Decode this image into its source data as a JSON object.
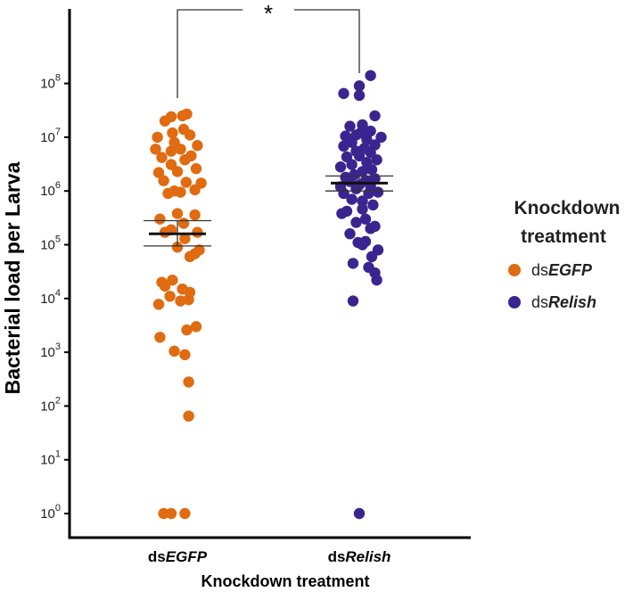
{
  "chart_data": {
    "type": "scatter",
    "title": "",
    "xlabel": "Knockdown treatment",
    "ylabel": "Bacterial load per Larva",
    "y_scale": "log",
    "ylim": [
      1,
      1000000000
    ],
    "y_ticks": [
      {
        "value": 1,
        "base": "10",
        "exp": "0"
      },
      {
        "value": 10,
        "base": "10",
        "exp": "1"
      },
      {
        "value": 100,
        "base": "10",
        "exp": "2"
      },
      {
        "value": 1000,
        "base": "10",
        "exp": "3"
      },
      {
        "value": 10000,
        "base": "10",
        "exp": "4"
      },
      {
        "value": 100000,
        "base": "10",
        "exp": "5"
      },
      {
        "value": 1000000,
        "base": "10",
        "exp": "6"
      },
      {
        "value": 10000000,
        "base": "10",
        "exp": "7"
      },
      {
        "value": 100000000,
        "base": "10",
        "exp": "8"
      }
    ],
    "categories": [
      {
        "prefix": "ds",
        "italic": "EGFP"
      },
      {
        "prefix": "ds",
        "italic": "Relish"
      }
    ],
    "legend": {
      "title_line1": "Knockdown",
      "title_line2": "treatment",
      "position": "right"
    },
    "significance": "*",
    "series": [
      {
        "color": "#e06b10",
        "mean": 160000,
        "error_low": 95000,
        "error_high": 280000,
        "points": [
          {
            "jitter": -0.22,
            "y": 1
          },
          {
            "jitter": -0.1,
            "y": 1
          },
          {
            "jitter": 0.12,
            "y": 1
          },
          {
            "jitter": 0.18,
            "y": 65
          },
          {
            "jitter": 0.18,
            "y": 280
          },
          {
            "jitter": 0.12,
            "y": 900
          },
          {
            "jitter": -0.05,
            "y": 1050
          },
          {
            "jitter": -0.28,
            "y": 1900
          },
          {
            "jitter": 0.15,
            "y": 2600
          },
          {
            "jitter": 0.3,
            "y": 3000
          },
          {
            "jitter": -0.3,
            "y": 7800
          },
          {
            "jitter": 0.05,
            "y": 9000
          },
          {
            "jitter": 0.18,
            "y": 9500
          },
          {
            "jitter": -0.12,
            "y": 11000
          },
          {
            "jitter": 0.2,
            "y": 13000
          },
          {
            "jitter": 0.08,
            "y": 15000
          },
          {
            "jitter": -0.2,
            "y": 17000
          },
          {
            "jitter": -0.25,
            "y": 20000
          },
          {
            "jitter": -0.08,
            "y": 22000
          },
          {
            "jitter": 0.2,
            "y": 60000
          },
          {
            "jitter": 0.28,
            "y": 68000
          },
          {
            "jitter": 0.35,
            "y": 80000
          },
          {
            "jitter": 0.0,
            "y": 90000
          },
          {
            "jitter": 0.12,
            "y": 130000
          },
          {
            "jitter": -0.2,
            "y": 170000
          },
          {
            "jitter": 0.32,
            "y": 170000
          },
          {
            "jitter": -0.1,
            "y": 190000
          },
          {
            "jitter": 0.1,
            "y": 250000
          },
          {
            "jitter": -0.28,
            "y": 300000
          },
          {
            "jitter": 0.28,
            "y": 360000
          },
          {
            "jitter": 0.0,
            "y": 380000
          },
          {
            "jitter": -0.15,
            "y": 900000
          },
          {
            "jitter": 0.05,
            "y": 950000
          },
          {
            "jitter": -0.05,
            "y": 1000000
          },
          {
            "jitter": 0.28,
            "y": 1050000
          },
          {
            "jitter": 0.38,
            "y": 1400000
          },
          {
            "jitter": 0.14,
            "y": 1450000
          },
          {
            "jitter": -0.22,
            "y": 1550000
          },
          {
            "jitter": -0.3,
            "y": 2200000
          },
          {
            "jitter": 0.0,
            "y": 2300000
          },
          {
            "jitter": 0.3,
            "y": 2600000
          },
          {
            "jitter": -0.1,
            "y": 3100000
          },
          {
            "jitter": 0.12,
            "y": 3800000
          },
          {
            "jitter": -0.25,
            "y": 4200000
          },
          {
            "jitter": 0.22,
            "y": 4500000
          },
          {
            "jitter": -0.1,
            "y": 5500000
          },
          {
            "jitter": 0.05,
            "y": 6000000
          },
          {
            "jitter": -0.35,
            "y": 6000000
          },
          {
            "jitter": 0.32,
            "y": 7000000
          },
          {
            "jitter": -0.05,
            "y": 8000000
          },
          {
            "jitter": -0.32,
            "y": 10000000
          },
          {
            "jitter": 0.2,
            "y": 11000000
          },
          {
            "jitter": 0.1,
            "y": 14000000
          },
          {
            "jitter": -0.08,
            "y": 12000000
          },
          {
            "jitter": -0.2,
            "y": 20000000
          },
          {
            "jitter": -0.1,
            "y": 24000000
          },
          {
            "jitter": 0.08,
            "y": 25000000
          },
          {
            "jitter": 0.15,
            "y": 27000000
          }
        ]
      },
      {
        "color": "#3a2590",
        "mean": 1400000,
        "error_low": 1000000,
        "error_high": 1900000,
        "points": [
          {
            "jitter": 0.0,
            "y": 1
          },
          {
            "jitter": -0.1,
            "y": 9000
          },
          {
            "jitter": 0.28,
            "y": 22000
          },
          {
            "jitter": 0.25,
            "y": 30000
          },
          {
            "jitter": 0.15,
            "y": 38000
          },
          {
            "jitter": -0.1,
            "y": 45000
          },
          {
            "jitter": 0.2,
            "y": 60000
          },
          {
            "jitter": 0.3,
            "y": 80000
          },
          {
            "jitter": 0.05,
            "y": 100000
          },
          {
            "jitter": -0.02,
            "y": 110000
          },
          {
            "jitter": 0.1,
            "y": 115000
          },
          {
            "jitter": -0.15,
            "y": 160000
          },
          {
            "jitter": 0.18,
            "y": 200000
          },
          {
            "jitter": 0.25,
            "y": 220000
          },
          {
            "jitter": -0.05,
            "y": 260000
          },
          {
            "jitter": 0.1,
            "y": 300000
          },
          {
            "jitter": -0.28,
            "y": 380000
          },
          {
            "jitter": -0.2,
            "y": 420000
          },
          {
            "jitter": 0.05,
            "y": 460000
          },
          {
            "jitter": 0.22,
            "y": 550000
          },
          {
            "jitter": 0.05,
            "y": 650000
          },
          {
            "jitter": -0.12,
            "y": 700000
          },
          {
            "jitter": -0.25,
            "y": 900000
          },
          {
            "jitter": 0.15,
            "y": 900000
          },
          {
            "jitter": 0.3,
            "y": 950000
          },
          {
            "jitter": -0.05,
            "y": 1100000
          },
          {
            "jitter": -0.3,
            "y": 1200000
          },
          {
            "jitter": 0.18,
            "y": 1250000
          },
          {
            "jitter": 0.0,
            "y": 1300000
          },
          {
            "jitter": -0.15,
            "y": 1500000
          },
          {
            "jitter": 0.1,
            "y": 1550000
          },
          {
            "jitter": 0.25,
            "y": 1700000
          },
          {
            "jitter": -0.22,
            "y": 1800000
          },
          {
            "jitter": -0.08,
            "y": 2000000
          },
          {
            "jitter": 0.05,
            "y": 2300000
          },
          {
            "jitter": 0.2,
            "y": 2500000
          },
          {
            "jitter": -0.3,
            "y": 2800000
          },
          {
            "jitter": -0.12,
            "y": 3100000
          },
          {
            "jitter": 0.12,
            "y": 3400000
          },
          {
            "jitter": 0.28,
            "y": 3800000
          },
          {
            "jitter": -0.2,
            "y": 4300000
          },
          {
            "jitter": 0.0,
            "y": 4500000
          },
          {
            "jitter": 0.18,
            "y": 5200000
          },
          {
            "jitter": -0.05,
            "y": 5500000
          },
          {
            "jitter": 0.08,
            "y": 6200000
          },
          {
            "jitter": -0.25,
            "y": 6800000
          },
          {
            "jitter": 0.25,
            "y": 7200000
          },
          {
            "jitter": -0.12,
            "y": 8000000
          },
          {
            "jitter": 0.12,
            "y": 9000000
          },
          {
            "jitter": 0.35,
            "y": 10000000
          },
          {
            "jitter": -0.22,
            "y": 10500000
          },
          {
            "jitter": -0.05,
            "y": 11000000
          },
          {
            "jitter": 0.02,
            "y": 12000000
          },
          {
            "jitter": 0.18,
            "y": 13000000
          },
          {
            "jitter": -0.15,
            "y": 16000000
          },
          {
            "jitter": 0.05,
            "y": 17000000
          },
          {
            "jitter": 0.25,
            "y": 25000000
          },
          {
            "jitter": 0.0,
            "y": 60000000
          },
          {
            "jitter": -0.25,
            "y": 65000000
          },
          {
            "jitter": 0.0,
            "y": 90000000
          },
          {
            "jitter": 0.18,
            "y": 140000000
          }
        ]
      }
    ]
  }
}
